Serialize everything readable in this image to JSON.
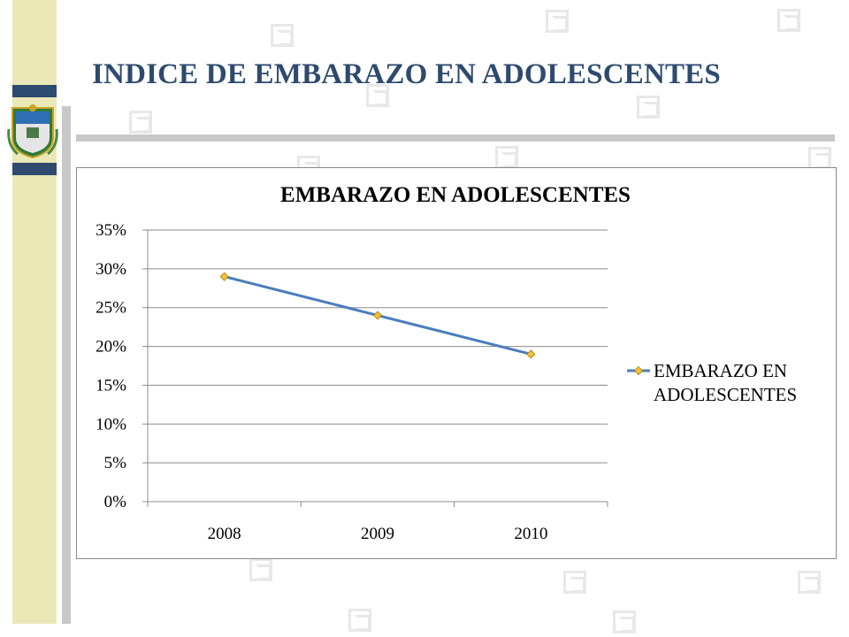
{
  "slide": {
    "title": "INDICE DE EMBARAZO EN ADOLESCENTES"
  },
  "colors": {
    "title": "#2e4a6e",
    "line": "#4a7ebb",
    "marker": "#f1c232",
    "sideband": "#ebe8b8",
    "stripe": "#2e4a6e"
  },
  "chart_data": {
    "type": "line",
    "title": "EMBARAZO EN ADOLESCENTES",
    "xlabel": "",
    "ylabel": "",
    "categories": [
      "2008",
      "2009",
      "2010"
    ],
    "series": [
      {
        "name": "EMBARAZO EN ADOLESCENTES",
        "values": [
          0.29,
          0.24,
          0.19
        ]
      }
    ],
    "ylim": [
      0,
      0.35
    ],
    "yticks": [
      "0%",
      "5%",
      "10%",
      "15%",
      "20%",
      "25%",
      "30%",
      "35%"
    ],
    "legend_lines": [
      "EMBARAZO EN",
      "ADOLESCENTES"
    ],
    "grid": true,
    "legend_position": "right"
  }
}
